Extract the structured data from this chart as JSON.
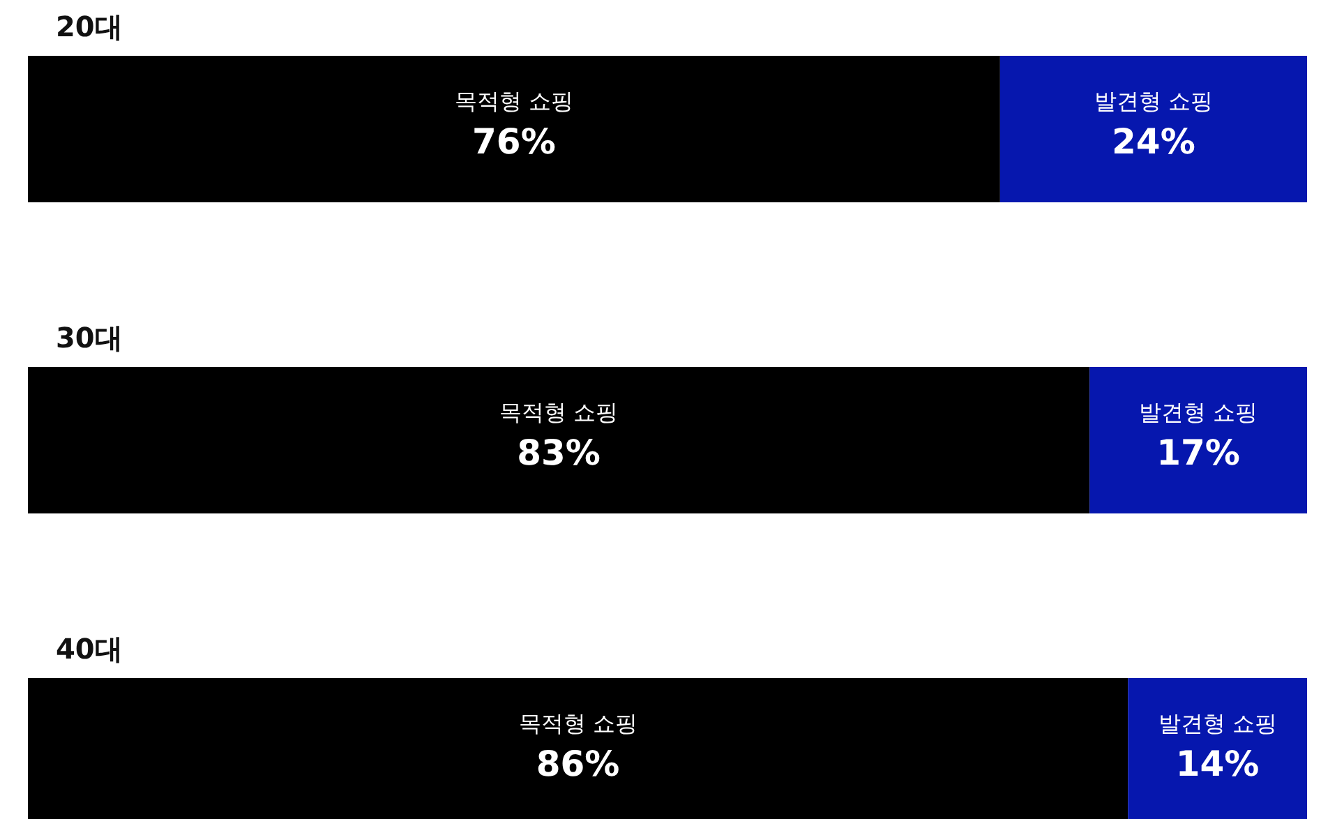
{
  "chart_data": {
    "type": "bar",
    "orientation": "horizontal",
    "stacked": true,
    "categories": [
      "20대",
      "30대",
      "40대"
    ],
    "series": [
      {
        "name": "목적형 쇼핑",
        "color": "#000000",
        "values": [
          76,
          83,
          86
        ],
        "value_labels": [
          "76%",
          "83%",
          "86%"
        ]
      },
      {
        "name": "발견형 쇼핑",
        "color": "#0617ae",
        "values": [
          24,
          17,
          14
        ],
        "value_labels": [
          "24%",
          "17%",
          "14%"
        ]
      }
    ]
  }
}
